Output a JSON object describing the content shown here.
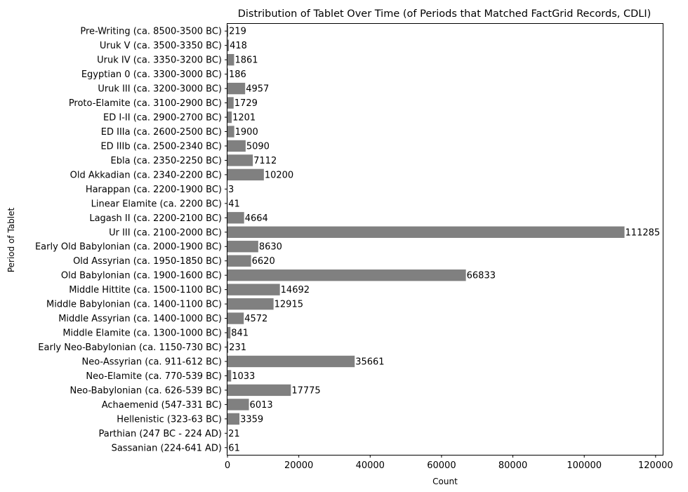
{
  "chart_data": {
    "type": "bar",
    "orientation": "horizontal",
    "title": "Distribution of Tablet Over Time (of Periods that Matched FactGrid Records, CDLI)",
    "xlabel": "Count",
    "ylabel": "Period of Tablet",
    "xlim": [
      0,
      122000
    ],
    "xticks": [
      0,
      20000,
      40000,
      60000,
      80000,
      100000,
      120000
    ],
    "xtick_labels": [
      "0",
      "20000",
      "40000",
      "60000",
      "80000",
      "100000",
      "120000"
    ],
    "bar_color": "#808080",
    "grid": false,
    "categories": [
      "Pre-Writing (ca. 8500-3500 BC)",
      "Uruk V (ca. 3500-3350 BC)",
      "Uruk IV (ca. 3350-3200 BC)",
      "Egyptian 0 (ca. 3300-3000 BC)",
      "Uruk III (ca. 3200-3000 BC)",
      "Proto-Elamite (ca. 3100-2900 BC)",
      "ED I-II (ca. 2900-2700 BC)",
      "ED IIIa (ca. 2600-2500 BC)",
      "ED IIIb (ca. 2500-2340 BC)",
      "Ebla (ca. 2350-2250 BC)",
      "Old Akkadian (ca. 2340-2200 BC)",
      "Harappan (ca. 2200-1900 BC)",
      "Linear Elamite (ca. 2200 BC)",
      "Lagash II (ca. 2200-2100 BC)",
      "Ur III (ca. 2100-2000 BC)",
      "Early Old Babylonian (ca. 2000-1900 BC)",
      "Old Assyrian (ca. 1950-1850 BC)",
      "Old Babylonian (ca. 1900-1600 BC)",
      "Middle Hittite (ca. 1500-1100 BC)",
      "Middle Babylonian (ca. 1400-1100 BC)",
      "Middle Assyrian (ca. 1400-1000 BC)",
      "Middle Elamite (ca. 1300-1000 BC)",
      "Early Neo-Babylonian (ca. 1150-730 BC)",
      "Neo-Assyrian (ca. 911-612 BC)",
      "Neo-Elamite (ca. 770-539 BC)",
      "Neo-Babylonian (ca. 626-539 BC)",
      "Achaemenid (547-331 BC)",
      "Hellenistic (323-63 BC)",
      "Parthian (247 BC - 224 AD)",
      "Sassanian (224-641 AD)"
    ],
    "values": [
      219,
      418,
      1861,
      186,
      4957,
      1729,
      1201,
      1900,
      5090,
      7112,
      10200,
      3,
      41,
      4664,
      111285,
      8630,
      6620,
      66833,
      14692,
      12915,
      4572,
      841,
      231,
      35661,
      1033,
      17775,
      6013,
      3359,
      21,
      61
    ]
  }
}
